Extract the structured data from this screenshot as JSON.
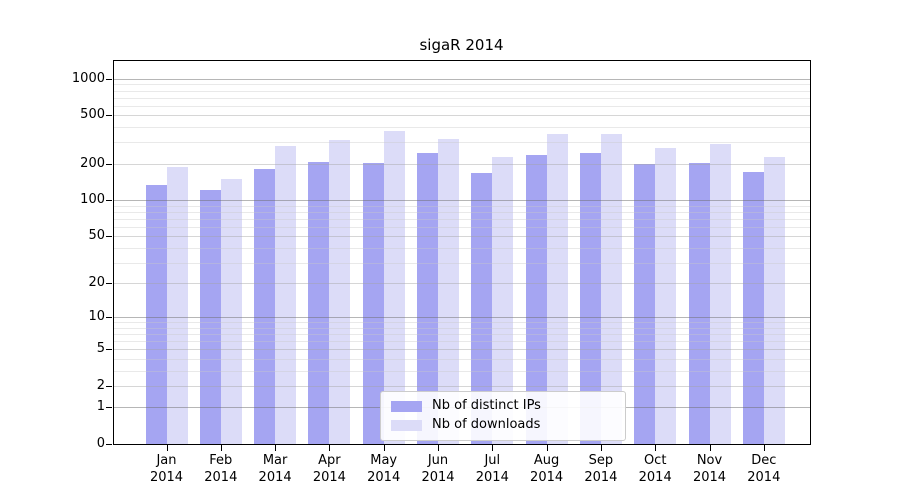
{
  "title": "sigaR 2014",
  "chart_data": {
    "type": "bar",
    "title": "sigaR 2014",
    "scale": "log1p",
    "grid": true,
    "legend_position": "bottom-center",
    "ylim": [
      0,
      1100
    ],
    "y_axis": {
      "ticks": [
        0,
        1,
        2,
        5,
        10,
        20,
        50,
        100,
        200,
        500,
        1000
      ]
    },
    "categories": [
      {
        "line1": "Jan",
        "line2": "2014"
      },
      {
        "line1": "Feb",
        "line2": "2014"
      },
      {
        "line1": "Mar",
        "line2": "2014"
      },
      {
        "line1": "Apr",
        "line2": "2014"
      },
      {
        "line1": "May",
        "line2": "2014"
      },
      {
        "line1": "Jun",
        "line2": "2014"
      },
      {
        "line1": "Jul",
        "line2": "2014"
      },
      {
        "line1": "Aug",
        "line2": "2014"
      },
      {
        "line1": "Sep",
        "line2": "2014"
      },
      {
        "line1": "Oct",
        "line2": "2014"
      },
      {
        "line1": "Nov",
        "line2": "2014"
      },
      {
        "line1": "Dec",
        "line2": "2014"
      }
    ],
    "series": [
      {
        "name": "Nb of distinct IPs",
        "color": "#a5a5f2",
        "values": [
          133,
          121,
          180,
          206,
          204,
          244,
          166,
          234,
          245,
          198,
          204,
          171
        ]
      },
      {
        "name": "Nb of downloads",
        "color": "#dcdcf8",
        "values": [
          187,
          149,
          281,
          312,
          374,
          318,
          227,
          354,
          354,
          268,
          291,
          229
        ]
      }
    ]
  }
}
